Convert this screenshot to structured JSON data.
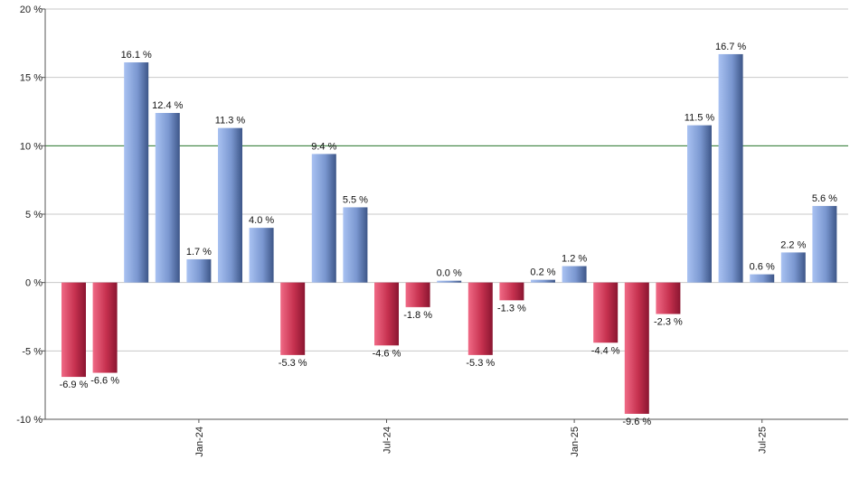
{
  "chart_data": {
    "type": "bar",
    "title": "",
    "xlabel": "",
    "ylabel": "",
    "ylim": [
      -10,
      20
    ],
    "y_ticks": [
      20,
      15,
      10,
      5,
      0,
      -5,
      -10
    ],
    "y_tick_labels": [
      "20 %",
      "15 %",
      "10 %",
      "5 %",
      "0 %",
      "-5 %",
      "-10 %"
    ],
    "x_tick_labels": [
      {
        "label": "Jan-24",
        "index": 4
      },
      {
        "label": "Jul-24",
        "index": 10
      },
      {
        "label": "Jan-25",
        "index": 16
      },
      {
        "label": "Jul-25",
        "index": 22
      }
    ],
    "reference_line": 10,
    "grid": true,
    "values": [
      -6.9,
      -6.6,
      16.1,
      12.4,
      1.7,
      11.3,
      4.0,
      -5.3,
      9.4,
      5.5,
      -4.6,
      -1.8,
      0.0,
      -5.3,
      -1.3,
      0.2,
      1.2,
      -4.4,
      -9.6,
      -2.3,
      11.5,
      16.7,
      0.6,
      2.2,
      5.6
    ],
    "labels": [
      "-6.9 %",
      "-6.6 %",
      "16.1 %",
      "12.4 %",
      "1.7 %",
      "11.3 %",
      "4.0 %",
      "-5.3 %",
      "9.4 %",
      "5.5 %",
      "-4.6 %",
      "-1.8 %",
      "0.0 %",
      "-5.3 %",
      "-1.3 %",
      "0.2 %",
      "1.2 %",
      "-4.4 %",
      "-9.6 %",
      "-2.3 %",
      "11.5 %",
      "16.7 %",
      "0.6 %",
      "2.2 %",
      "5.6 %"
    ],
    "colors": {
      "positive_light": "#a9c2f2",
      "positive_dark": "#3d5688",
      "negative_light": "#f06a86",
      "negative_dark": "#8a1530",
      "reference_line": "#2e7d32",
      "grid": "#c8c8c8",
      "axis": "#555555"
    }
  }
}
